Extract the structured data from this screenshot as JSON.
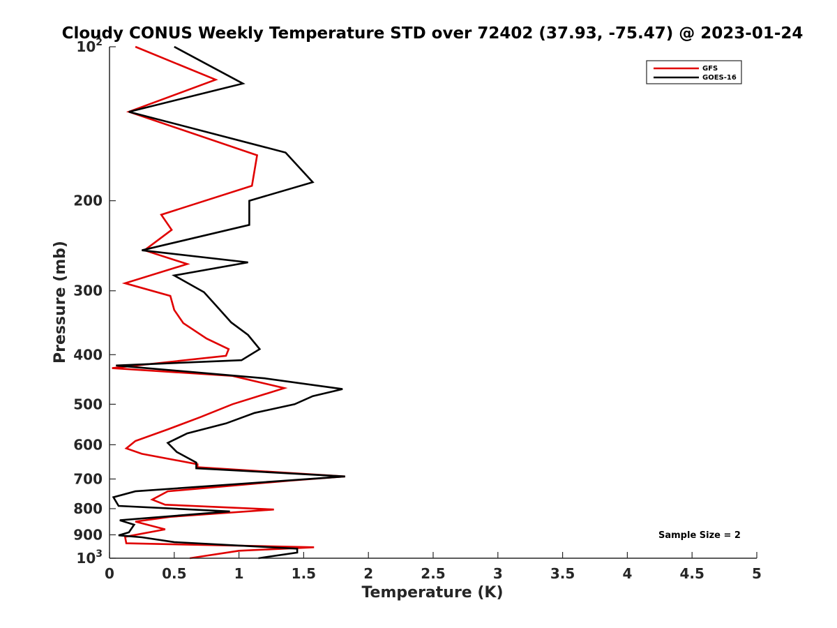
{
  "chart_data": {
    "type": "line",
    "title": "Cloudy CONUS Weekly Temperature STD over 72402 (37.93, -75.47) @ 2023-01-24",
    "xlabel": "Temperature (K)",
    "ylabel": "Pressure (mb)",
    "xlim": [
      0,
      5
    ],
    "ylim": [
      100,
      1000
    ],
    "y_scale": "log",
    "y_reversed": true,
    "x_ticks": [
      "0",
      "0.5",
      "1",
      "1.5",
      "2",
      "2.5",
      "3",
      "3.5",
      "4",
      "4.5",
      "5"
    ],
    "y_ticks": [
      {
        "value": 100,
        "base": "10",
        "exp": "2"
      },
      {
        "value": 200,
        "label": "200"
      },
      {
        "value": 300,
        "label": "300"
      },
      {
        "value": 400,
        "label": "400"
      },
      {
        "value": 500,
        "label": "500"
      },
      {
        "value": 600,
        "label": "600"
      },
      {
        "value": 700,
        "label": "700"
      },
      {
        "value": 800,
        "label": "800"
      },
      {
        "value": 900,
        "label": "900"
      },
      {
        "value": 1000,
        "base": "10",
        "exp": "3"
      }
    ],
    "legend_position": "top-right",
    "grid": false,
    "annotation": "Sample Size = 2",
    "series": [
      {
        "name": "GFS",
        "color": "#e00000",
        "points": [
          {
            "x": 0.2,
            "p": 100
          },
          {
            "x": 0.82,
            "p": 116
          },
          {
            "x": 0.15,
            "p": 134
          },
          {
            "x": 1.14,
            "p": 163
          },
          {
            "x": 1.1,
            "p": 187
          },
          {
            "x": 0.4,
            "p": 213
          },
          {
            "x": 0.48,
            "p": 228
          },
          {
            "x": 0.27,
            "p": 250
          },
          {
            "x": 0.6,
            "p": 266
          },
          {
            "x": 0.12,
            "p": 290
          },
          {
            "x": 0.47,
            "p": 307
          },
          {
            "x": 0.5,
            "p": 327
          },
          {
            "x": 0.57,
            "p": 347
          },
          {
            "x": 0.75,
            "p": 372
          },
          {
            "x": 0.92,
            "p": 390
          },
          {
            "x": 0.9,
            "p": 402
          },
          {
            "x": 0.02,
            "p": 425
          },
          {
            "x": 0.95,
            "p": 440
          },
          {
            "x": 1.35,
            "p": 465
          },
          {
            "x": 0.95,
            "p": 500
          },
          {
            "x": 0.7,
            "p": 530
          },
          {
            "x": 0.45,
            "p": 560
          },
          {
            "x": 0.2,
            "p": 590
          },
          {
            "x": 0.13,
            "p": 610
          },
          {
            "x": 0.25,
            "p": 625
          },
          {
            "x": 0.68,
            "p": 655
          },
          {
            "x": 0.68,
            "p": 664
          },
          {
            "x": 1.82,
            "p": 692
          },
          {
            "x": 1.4,
            "p": 705
          },
          {
            "x": 0.45,
            "p": 740
          },
          {
            "x": 0.33,
            "p": 768
          },
          {
            "x": 0.43,
            "p": 786
          },
          {
            "x": 1.27,
            "p": 803
          },
          {
            "x": 0.47,
            "p": 830
          },
          {
            "x": 0.2,
            "p": 848
          },
          {
            "x": 0.43,
            "p": 878
          },
          {
            "x": 0.12,
            "p": 908
          },
          {
            "x": 0.13,
            "p": 935
          },
          {
            "x": 1.58,
            "p": 952
          },
          {
            "x": 1.0,
            "p": 967
          },
          {
            "x": 0.62,
            "p": 1000
          }
        ]
      },
      {
        "name": "GOES-16",
        "color": "#000000",
        "points": [
          {
            "x": 0.5,
            "p": 100
          },
          {
            "x": 1.03,
            "p": 118
          },
          {
            "x": 0.15,
            "p": 134
          },
          {
            "x": 1.36,
            "p": 161
          },
          {
            "x": 1.57,
            "p": 184
          },
          {
            "x": 1.08,
            "p": 200
          },
          {
            "x": 1.08,
            "p": 223
          },
          {
            "x": 0.25,
            "p": 250
          },
          {
            "x": 1.07,
            "p": 264
          },
          {
            "x": 0.5,
            "p": 280
          },
          {
            "x": 0.73,
            "p": 302
          },
          {
            "x": 0.82,
            "p": 320
          },
          {
            "x": 0.94,
            "p": 346
          },
          {
            "x": 1.07,
            "p": 366
          },
          {
            "x": 1.16,
            "p": 390
          },
          {
            "x": 1.02,
            "p": 410
          },
          {
            "x": 0.05,
            "p": 420
          },
          {
            "x": 1.2,
            "p": 445
          },
          {
            "x": 1.8,
            "p": 467
          },
          {
            "x": 1.57,
            "p": 482
          },
          {
            "x": 1.43,
            "p": 500
          },
          {
            "x": 1.12,
            "p": 520
          },
          {
            "x": 0.9,
            "p": 545
          },
          {
            "x": 0.6,
            "p": 570
          },
          {
            "x": 0.45,
            "p": 595
          },
          {
            "x": 0.52,
            "p": 620
          },
          {
            "x": 0.67,
            "p": 650
          },
          {
            "x": 0.67,
            "p": 667
          },
          {
            "x": 1.82,
            "p": 692
          },
          {
            "x": 0.2,
            "p": 740
          },
          {
            "x": 0.03,
            "p": 760
          },
          {
            "x": 0.07,
            "p": 790
          },
          {
            "x": 0.93,
            "p": 810
          },
          {
            "x": 0.08,
            "p": 843
          },
          {
            "x": 0.19,
            "p": 860
          },
          {
            "x": 0.15,
            "p": 890
          },
          {
            "x": 0.07,
            "p": 902
          },
          {
            "x": 0.25,
            "p": 910
          },
          {
            "x": 0.5,
            "p": 930
          },
          {
            "x": 1.45,
            "p": 958
          },
          {
            "x": 1.45,
            "p": 975
          },
          {
            "x": 1.15,
            "p": 1000
          }
        ]
      }
    ]
  }
}
